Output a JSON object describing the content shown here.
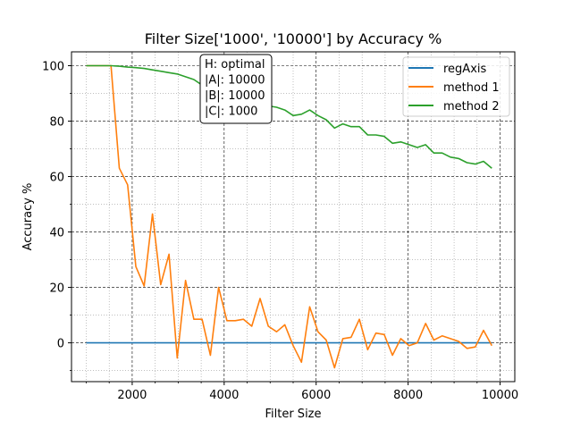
{
  "chart_data": {
    "type": "line",
    "title": "Filter Size['1000', '10000'] by Accuracy %",
    "xlabel": "Filter Size",
    "ylabel": "Accuracy %",
    "xlim": [
      680,
      10320
    ],
    "ylim": [
      -14,
      105
    ],
    "x_ticks": [
      2000,
      4000,
      6000,
      8000,
      10000
    ],
    "y_ticks": [
      0,
      20,
      40,
      60,
      80,
      100
    ],
    "x_minor_step": 500,
    "y_minor_step": 10,
    "grid": true,
    "legend_position": "top-right",
    "annotation": [
      "H: optimal",
      "|A|: 10000",
      "|B|: 10000",
      "|C|: 1000"
    ],
    "x": [
      1000,
      1180,
      1360,
      1540,
      1720,
      1900,
      2080,
      2260,
      2440,
      2620,
      2800,
      2980,
      3160,
      3340,
      3520,
      3700,
      3880,
      4060,
      4240,
      4420,
      4600,
      4780,
      4960,
      5140,
      5320,
      5500,
      5680,
      5860,
      6040,
      6220,
      6400,
      6580,
      6760,
      6940,
      7120,
      7300,
      7480,
      7660,
      7840,
      8020,
      8200,
      8380,
      8560,
      8740,
      8920,
      9100,
      9280,
      9460,
      9640,
      9820
    ],
    "series": [
      {
        "name": "regAxis",
        "color": "#1f77b4",
        "values": [
          0,
          0,
          0,
          0,
          0,
          0,
          0,
          0,
          0,
          0,
          0,
          0,
          0,
          0,
          0,
          0,
          0,
          0,
          0,
          0,
          0,
          0,
          0,
          0,
          0,
          0,
          0,
          0,
          0,
          0,
          0,
          0,
          0,
          0,
          0,
          0,
          0,
          0,
          0,
          0,
          0,
          0,
          0,
          0,
          0,
          0,
          0,
          0,
          0,
          0
        ]
      },
      {
        "name": "method 1",
        "color": "#ff7f0e",
        "values": [
          100,
          100,
          100,
          100,
          63,
          57,
          27.5,
          20.5,
          46.5,
          21,
          32,
          -5.5,
          22.5,
          8.5,
          8.5,
          -4.5,
          20,
          8,
          8,
          8.5,
          6,
          16,
          6,
          4,
          6.5,
          -1,
          -7,
          13,
          4,
          1,
          -9,
          1.5,
          2,
          8.5,
          -2.5,
          3.5,
          3,
          -4.5,
          1.5,
          -1,
          0,
          7,
          1,
          2.5,
          1.5,
          0.5,
          -2,
          -1.5,
          4.5,
          -1
        ]
      },
      {
        "name": "method 2",
        "color": "#2ca02c",
        "values": [
          100,
          100,
          100,
          100,
          99.8,
          99.5,
          99.3,
          99,
          98.5,
          98,
          97.5,
          97,
          96,
          95,
          93,
          91,
          90,
          89.5,
          89,
          88.5,
          87.5,
          86.5,
          85.5,
          85,
          84,
          82,
          82.5,
          84,
          82,
          80.5,
          77.5,
          79,
          78,
          78,
          75,
          75,
          74.5,
          72,
          72.5,
          71.5,
          70.5,
          71.5,
          68.5,
          68.5,
          67,
          66.5,
          65,
          64.5,
          65.5,
          63
        ]
      }
    ]
  }
}
